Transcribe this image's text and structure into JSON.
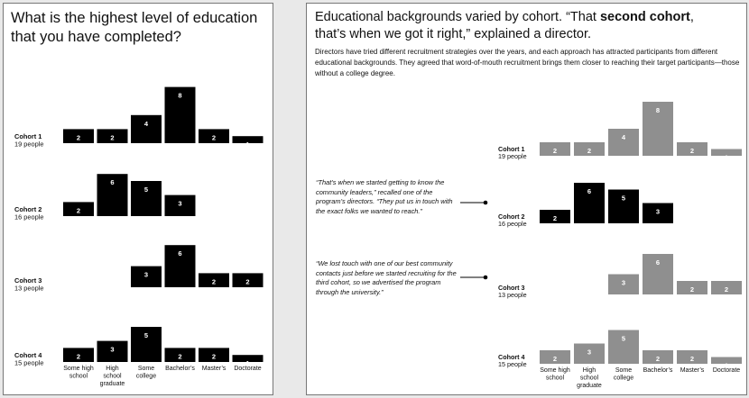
{
  "left": {
    "title": "What is the highest level of education that you have completed?"
  },
  "right": {
    "title_part1": "Educational backgrounds varied by cohort. “That ",
    "title_bold": "second cohort",
    "title_part2": ",",
    "title_line2": "that’s when we got it right,” explained a director.",
    "body": "Directors have tried different recruitment strategies over the years, and each approach has attracted participants from different educational backgrounds. They agreed that word-of-mouth recruitment brings them closer to reaching their target participants—those without a college degree.",
    "quote1": "“That’s when we started getting to know the community leaders,” recalled one of the program’s directors. “They put us in touch with the exact folks we wanted to reach.”",
    "quote2": "“We lost touch with one of our best community contacts just before we started recruiting for the third cohort, so we advertised the program through the university.”"
  },
  "colors": {
    "black_bar": "#000000",
    "gray_bar": "#8f8f8f",
    "text": "#111111"
  },
  "chart_data": [
    {
      "type": "bar",
      "title": "What is the highest level of education that you have completed?",
      "categories": [
        "Some high school",
        "High school graduate",
        "Some college",
        "Bachelor's",
        "Master's",
        "Doctorate"
      ],
      "category_lines": [
        [
          "Some high",
          "school"
        ],
        [
          "High",
          "school",
          "graduate"
        ],
        [
          "Some",
          "college"
        ],
        [
          "Bachelor’s"
        ],
        [
          "Master’s"
        ],
        [
          "Doctorate"
        ]
      ],
      "series": [
        {
          "name": "Cohort 1",
          "subtitle": "19 people",
          "values": [
            2,
            2,
            4,
            8,
            2,
            1
          ]
        },
        {
          "name": "Cohort 2",
          "subtitle": "16 people",
          "values": [
            2,
            6,
            5,
            3,
            0,
            0
          ]
        },
        {
          "name": "Cohort 3",
          "subtitle": "13 people",
          "values": [
            0,
            0,
            3,
            6,
            2,
            2
          ]
        },
        {
          "name": "Cohort 4",
          "subtitle": "15 people",
          "values": [
            2,
            3,
            5,
            2,
            2,
            1
          ]
        }
      ],
      "colors": [
        "#000000",
        "#000000",
        "#000000",
        "#000000"
      ],
      "grid": false
    },
    {
      "type": "bar",
      "categories": [
        "Some high school",
        "High school graduate",
        "Some college",
        "Bachelor's",
        "Master's",
        "Doctorate"
      ],
      "category_lines": [
        [
          "Some high",
          "school"
        ],
        [
          "High",
          "school",
          "graduate"
        ],
        [
          "Some",
          "college"
        ],
        [
          "Bachelor’s"
        ],
        [
          "Master’s"
        ],
        [
          "Doctorate"
        ]
      ],
      "series": [
        {
          "name": "Cohort 1",
          "subtitle": "19 people",
          "values": [
            2,
            2,
            4,
            8,
            2,
            1
          ]
        },
        {
          "name": "Cohort 2",
          "subtitle": "16 people",
          "values": [
            2,
            6,
            5,
            3,
            0,
            0
          ]
        },
        {
          "name": "Cohort 3",
          "subtitle": "13 people",
          "values": [
            0,
            0,
            3,
            6,
            2,
            2
          ]
        },
        {
          "name": "Cohort 4",
          "subtitle": "15 people",
          "values": [
            2,
            3,
            5,
            2,
            2,
            1
          ]
        }
      ],
      "colors": [
        "#8f8f8f",
        "#000000",
        "#8f8f8f",
        "#8f8f8f"
      ],
      "highlight": "Cohort 2",
      "grid": false
    }
  ]
}
